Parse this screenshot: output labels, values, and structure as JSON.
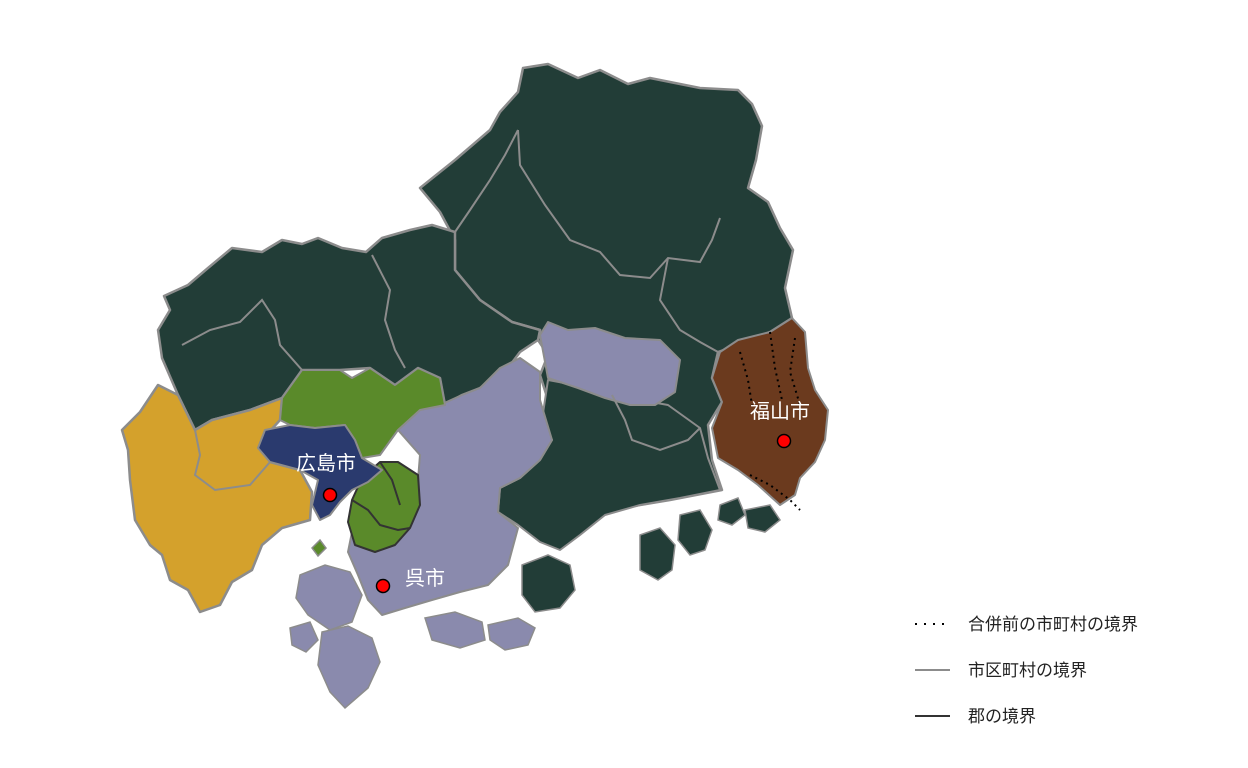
{
  "colors": {
    "dark_green": "#223d37",
    "olive_green": "#5a8a2a",
    "mustard": "#d4a12c",
    "navy": "#2a3a6e",
    "lavender": "#8a8aad",
    "brown": "#6b3a1e",
    "municipal_border": "#8c8c8c",
    "county_border": "#333333",
    "city_marker": "#ff0000"
  },
  "cities": [
    {
      "name": "広島市"
    },
    {
      "name": "呉市"
    },
    {
      "name": "福山市"
    }
  ],
  "legend": {
    "items": [
      {
        "label": "合併前の市町村の境界",
        "style": "dotted"
      },
      {
        "label": "市区町村の境界",
        "style": "gray-line"
      },
      {
        "label": "郡の境界",
        "style": "dark-line"
      }
    ]
  }
}
